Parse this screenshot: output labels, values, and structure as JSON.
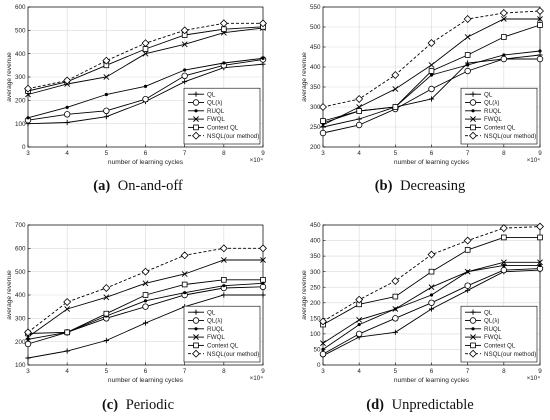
{
  "figure": {
    "captions": [
      {
        "letter": "(a)",
        "text": "On-and-off"
      },
      {
        "letter": "(b)",
        "text": "Decreasing"
      },
      {
        "letter": "(c)",
        "text": "Periodic"
      },
      {
        "letter": "(d)",
        "text": "Unpredictable"
      }
    ]
  },
  "chart_data": [
    {
      "type": "line",
      "xlabel": "number of learning cycles",
      "ylabel": "average revenue",
      "x_multiplier": "×10⁴",
      "x": [
        3,
        4,
        5,
        6,
        7,
        8,
        9
      ],
      "xlim": [
        3,
        9
      ],
      "ylim": [
        0,
        600
      ],
      "yticks": [
        0,
        100,
        200,
        300,
        400,
        500,
        600
      ],
      "grid": true,
      "legend_position": "bottom-right",
      "series": [
        {
          "name": "QL",
          "marker": "plus",
          "dash": "solid",
          "values": [
            100,
            105,
            130,
            195,
            280,
            340,
            355
          ]
        },
        {
          "name": "QL(λ)",
          "marker": "circle",
          "dash": "solid",
          "values": [
            115,
            140,
            155,
            205,
            305,
            350,
            375
          ]
        },
        {
          "name": "RUQL",
          "marker": "dot",
          "dash": "solid",
          "values": [
            125,
            170,
            225,
            260,
            330,
            360,
            380
          ]
        },
        {
          "name": "FWQL",
          "marker": "x",
          "dash": "solid",
          "values": [
            225,
            270,
            300,
            400,
            440,
            490,
            510
          ]
        },
        {
          "name": "Context QL",
          "marker": "square",
          "dash": "solid",
          "values": [
            240,
            280,
            350,
            420,
            480,
            505,
            515
          ]
        },
        {
          "name": "NSQL(our method)",
          "marker": "diamond",
          "dash": "dashed",
          "values": [
            250,
            285,
            370,
            445,
            500,
            530,
            530
          ]
        }
      ]
    },
    {
      "type": "line",
      "xlabel": "number of learning cycles",
      "ylabel": "average revenue",
      "x_multiplier": "×10⁴",
      "x": [
        3,
        4,
        5,
        6,
        7,
        8,
        9
      ],
      "xlim": [
        3,
        9
      ],
      "ylim": [
        200,
        550
      ],
      "yticks": [
        200,
        250,
        300,
        350,
        400,
        450,
        500,
        550
      ],
      "grid": true,
      "legend_position": "bottom-right",
      "series": [
        {
          "name": "QL",
          "marker": "plus",
          "dash": "solid",
          "values": [
            250,
            270,
            300,
            320,
            410,
            420,
            430
          ]
        },
        {
          "name": "QL(λ)",
          "marker": "circle",
          "dash": "solid",
          "values": [
            235,
            255,
            295,
            345,
            390,
            420,
            420
          ]
        },
        {
          "name": "RUQL",
          "marker": "dot",
          "dash": "solid",
          "values": [
            260,
            290,
            300,
            380,
            405,
            430,
            440
          ]
        },
        {
          "name": "FWQL",
          "marker": "x",
          "dash": "solid",
          "values": [
            255,
            300,
            345,
            405,
            475,
            520,
            520
          ]
        },
        {
          "name": "Context QL",
          "marker": "square",
          "dash": "solid",
          "values": [
            265,
            290,
            300,
            390,
            430,
            475,
            505
          ]
        },
        {
          "name": "NSQL(our method)",
          "marker": "diamond",
          "dash": "dashed",
          "values": [
            300,
            320,
            380,
            460,
            520,
            535,
            540
          ]
        }
      ]
    },
    {
      "type": "line",
      "xlabel": "number of learning cycles",
      "ylabel": "average revenue",
      "x_multiplier": "×10⁴",
      "x": [
        3,
        4,
        5,
        6,
        7,
        8,
        9
      ],
      "xlim": [
        3,
        9
      ],
      "ylim": [
        100,
        700
      ],
      "yticks": [
        100,
        200,
        300,
        400,
        500,
        600,
        700
      ],
      "grid": true,
      "legend_position": "bottom-right",
      "series": [
        {
          "name": "QL",
          "marker": "plus",
          "dash": "solid",
          "values": [
            130,
            160,
            205,
            280,
            350,
            400,
            400
          ]
        },
        {
          "name": "QL(λ)",
          "marker": "circle",
          "dash": "solid",
          "values": [
            190,
            240,
            300,
            350,
            400,
            430,
            435
          ]
        },
        {
          "name": "RUQL",
          "marker": "dot",
          "dash": "solid",
          "values": [
            210,
            240,
            310,
            375,
            410,
            440,
            450
          ]
        },
        {
          "name": "FWQL",
          "marker": "x",
          "dash": "solid",
          "values": [
            220,
            340,
            390,
            450,
            490,
            550,
            550
          ]
        },
        {
          "name": "Context QL",
          "marker": "square",
          "dash": "solid",
          "values": [
            235,
            240,
            320,
            400,
            445,
            465,
            465
          ]
        },
        {
          "name": "NSQL(our method)",
          "marker": "diamond",
          "dash": "dashed",
          "values": [
            240,
            370,
            430,
            500,
            570,
            600,
            600
          ]
        }
      ]
    },
    {
      "type": "line",
      "xlabel": "number of learning cycles",
      "ylabel": "average revenue",
      "x_multiplier": "×10⁴",
      "x": [
        3,
        4,
        5,
        6,
        7,
        8,
        9
      ],
      "xlim": [
        3,
        9
      ],
      "ylim": [
        0,
        450
      ],
      "yticks": [
        0,
        50,
        100,
        150,
        200,
        250,
        300,
        350,
        400,
        450
      ],
      "grid": true,
      "legend_position": "bottom-right",
      "series": [
        {
          "name": "QL",
          "marker": "plus",
          "dash": "solid",
          "values": [
            30,
            90,
            105,
            180,
            240,
            300,
            305
          ]
        },
        {
          "name": "QL(λ)",
          "marker": "circle",
          "dash": "solid",
          "values": [
            35,
            100,
            150,
            200,
            255,
            305,
            310
          ]
        },
        {
          "name": "RUQL",
          "marker": "dot",
          "dash": "solid",
          "values": [
            50,
            130,
            180,
            225,
            300,
            320,
            320
          ]
        },
        {
          "name": "FWQL",
          "marker": "x",
          "dash": "solid",
          "values": [
            70,
            145,
            180,
            250,
            300,
            330,
            330
          ]
        },
        {
          "name": "Context QL",
          "marker": "square",
          "dash": "solid",
          "values": [
            130,
            195,
            220,
            300,
            370,
            410,
            410
          ]
        },
        {
          "name": "NSQL(our method)",
          "marker": "diamond",
          "dash": "dashed",
          "values": [
            140,
            210,
            270,
            355,
            400,
            440,
            445
          ]
        }
      ]
    }
  ]
}
